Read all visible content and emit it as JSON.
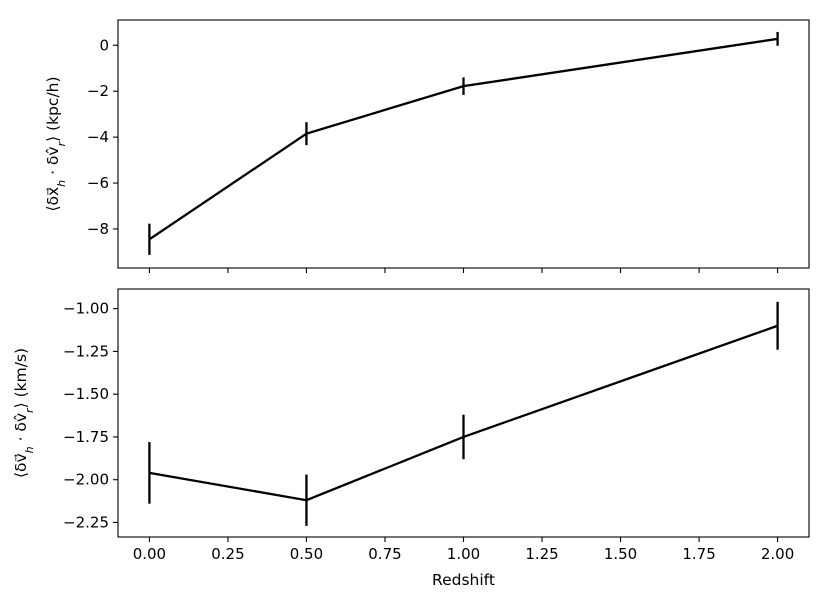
{
  "chart_data": [
    {
      "type": "line",
      "ylabel_prefix": "⟨δx⃗",
      "ylabel_sub1": "h",
      "ylabel_mid": " · δv̂",
      "ylabel_sub2": "r",
      "ylabel_suffix": "⟩ (kpc/h)",
      "x": [
        0.0,
        0.5,
        1.0,
        2.0
      ],
      "series": [
        {
          "values": [
            -8.45,
            -3.85,
            -1.78,
            0.28
          ],
          "errors": [
            0.68,
            0.5,
            0.38,
            0.3
          ]
        }
      ],
      "xlim": [
        -0.1,
        2.1
      ],
      "ylim": [
        -9.7,
        1.1
      ],
      "yticks": [
        0,
        -2,
        -4,
        -6,
        -8
      ],
      "ytick_labels": [
        "0",
        "−2",
        "−4",
        "−6",
        "−8"
      ],
      "xticks": [
        0.0,
        0.25,
        0.5,
        0.75,
        1.0,
        1.25,
        1.5,
        1.75,
        2.0
      ],
      "xtick_labels_shown": false,
      "grid": false,
      "line_color": "#000000"
    },
    {
      "type": "line",
      "ylabel_prefix": "⟨δv⃗",
      "ylabel_sub1": "h",
      "ylabel_mid": " · δv̂",
      "ylabel_sub2": "r",
      "ylabel_suffix": "⟩ (km/s)",
      "xlabel": "Redshift",
      "x": [
        0.0,
        0.5,
        1.0,
        2.0
      ],
      "series": [
        {
          "values": [
            -1.96,
            -2.12,
            -1.75,
            -1.1
          ],
          "errors": [
            0.18,
            0.15,
            0.13,
            0.14
          ]
        }
      ],
      "xlim": [
        -0.1,
        2.1
      ],
      "ylim": [
        -2.335,
        -0.885
      ],
      "yticks": [
        -1.0,
        -1.25,
        -1.5,
        -1.75,
        -2.0,
        -2.25
      ],
      "ytick_labels": [
        "−1.00",
        "−1.25",
        "−1.50",
        "−1.75",
        "−2.00",
        "−2.25"
      ],
      "xticks": [
        0.0,
        0.25,
        0.5,
        0.75,
        1.0,
        1.25,
        1.5,
        1.75,
        2.0
      ],
      "xtick_labels": [
        "0.00",
        "0.25",
        "0.50",
        "0.75",
        "1.00",
        "1.25",
        "1.50",
        "1.75",
        "2.00"
      ],
      "xtick_labels_shown": true,
      "grid": false,
      "line_color": "#000000"
    }
  ]
}
